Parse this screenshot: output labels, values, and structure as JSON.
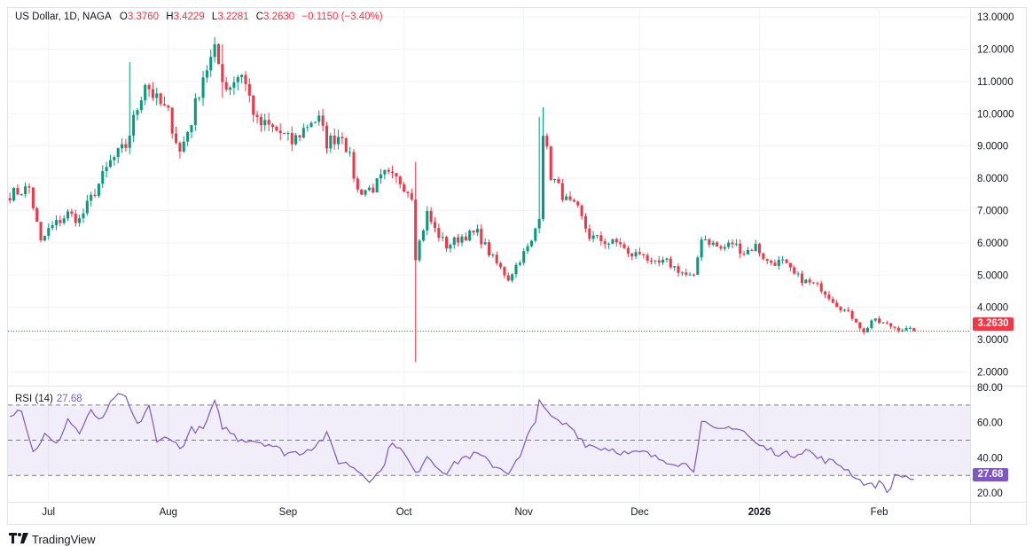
{
  "legend": {
    "symbol": "US Dollar, 1D, NAGA",
    "open_label": "O",
    "open": "3.3760",
    "high_label": "H",
    "high": "3.4229",
    "low_label": "L",
    "low": "3.2281",
    "close_label": "C",
    "close": "3.2630",
    "change": "−0.1150 (−3.40%)"
  },
  "rsi_legend": {
    "label": "RSI (14)",
    "value": "27.68"
  },
  "price_tag": "3.2630",
  "rsi_tag": "27.68",
  "branding": {
    "name": "TradingView"
  },
  "colors": {
    "up": "#089981",
    "down": "#f23645",
    "rsi": "#7e57c2",
    "grid": "#f0f3fa"
  },
  "chart_data": {
    "type": "candlestick",
    "title": "US Dollar, 1D, NAGA",
    "price_axis": {
      "ticks": [
        "13.0000",
        "12.0000",
        "11.0000",
        "10.0000",
        "9.0000",
        "8.0000",
        "7.0000",
        "6.0000",
        "5.0000",
        "4.0000",
        "3.0000",
        "2.0000"
      ],
      "range": [
        1.6,
        13.25
      ]
    },
    "rsi_axis": {
      "ticks": [
        "80.00",
        "60.00",
        "40.00",
        "20.00"
      ],
      "range": [
        15,
        80
      ],
      "bands": [
        30,
        50,
        70
      ]
    },
    "time_axis": [
      {
        "label": "Jul",
        "bar": 10,
        "bold": false
      },
      {
        "label": "Aug",
        "bar": 41,
        "bold": false
      },
      {
        "label": "Sep",
        "bar": 72,
        "bold": false
      },
      {
        "label": "Oct",
        "bar": 102,
        "bold": false
      },
      {
        "label": "Nov",
        "bar": 133,
        "bold": false
      },
      {
        "label": "Dec",
        "bar": 163,
        "bold": false
      },
      {
        "label": "2026",
        "bar": 194,
        "bold": true
      },
      {
        "label": "Feb",
        "bar": 225,
        "bold": false
      }
    ],
    "bar_count": 235,
    "current_price": 3.263,
    "current_rsi": 27.68,
    "anchors": [
      [
        0,
        7.5
      ],
      [
        5,
        7.7
      ],
      [
        8,
        6.0
      ],
      [
        10,
        6.4
      ],
      [
        15,
        6.9
      ],
      [
        18,
        6.7
      ],
      [
        22,
        7.6
      ],
      [
        26,
        8.5
      ],
      [
        30,
        9.0
      ],
      [
        35,
        11.0
      ],
      [
        38,
        10.4
      ],
      [
        41,
        10.0
      ],
      [
        44,
        8.8
      ],
      [
        47,
        9.8
      ],
      [
        50,
        11.2
      ],
      [
        53,
        11.9
      ],
      [
        56,
        10.8
      ],
      [
        60,
        11.3
      ],
      [
        62,
        10.5
      ],
      [
        64,
        9.7
      ],
      [
        67,
        9.6
      ],
      [
        70,
        9.4
      ],
      [
        73,
        9.1
      ],
      [
        78,
        9.8
      ],
      [
        80,
        9.8
      ],
      [
        82,
        9.1
      ],
      [
        86,
        9.4
      ],
      [
        88,
        8.6
      ],
      [
        90,
        7.6
      ],
      [
        94,
        7.7
      ],
      [
        97,
        8.1
      ],
      [
        101,
        7.9
      ],
      [
        104,
        7.5
      ],
      [
        105,
        5.6
      ],
      [
        108,
        6.9
      ],
      [
        110,
        6.4
      ],
      [
        113,
        5.9
      ],
      [
        117,
        6.2
      ],
      [
        121,
        6.3
      ],
      [
        125,
        5.5
      ],
      [
        129,
        4.9
      ],
      [
        132,
        5.5
      ],
      [
        135,
        6.0
      ],
      [
        137,
        6.9
      ],
      [
        138,
        9.5
      ],
      [
        140,
        8.1
      ],
      [
        144,
        7.3
      ],
      [
        147,
        7.0
      ],
      [
        150,
        6.2
      ],
      [
        155,
        6.0
      ],
      [
        158,
        6.0
      ],
      [
        160,
        5.6
      ],
      [
        164,
        5.7
      ],
      [
        166,
        5.3
      ],
      [
        170,
        5.4
      ],
      [
        175,
        5.0
      ],
      [
        177,
        4.9
      ],
      [
        179,
        6.2
      ],
      [
        184,
        5.8
      ],
      [
        187,
        6.0
      ],
      [
        190,
        5.7
      ],
      [
        193,
        5.9
      ],
      [
        196,
        5.4
      ],
      [
        200,
        5.4
      ],
      [
        203,
        5.0
      ],
      [
        206,
        4.8
      ],
      [
        210,
        4.6
      ],
      [
        214,
        4.1
      ],
      [
        217,
        3.8
      ],
      [
        219,
        3.6
      ],
      [
        221,
        3.2
      ],
      [
        223,
        3.6
      ],
      [
        226,
        3.5
      ],
      [
        229,
        3.38
      ],
      [
        234,
        3.26
      ]
    ],
    "spikes": [
      {
        "bar": 105,
        "high": 8.5,
        "low": 2.3
      },
      {
        "bar": 137,
        "high": 9.9,
        "low": 6.3
      },
      {
        "bar": 138,
        "high": 10.2,
        "low": 8.0
      },
      {
        "bar": 55,
        "high": 12.15,
        "low": 10.5
      },
      {
        "bar": 31,
        "high": 11.6,
        "low": 9.8
      }
    ],
    "rsi_anchors": [
      [
        0,
        65
      ],
      [
        3,
        68
      ],
      [
        6,
        43
      ],
      [
        9,
        53
      ],
      [
        12,
        47
      ],
      [
        15,
        62
      ],
      [
        18,
        54
      ],
      [
        21,
        66
      ],
      [
        24,
        61
      ],
      [
        27,
        75
      ],
      [
        30,
        74
      ],
      [
        33,
        58
      ],
      [
        36,
        70
      ],
      [
        38,
        48
      ],
      [
        41,
        53
      ],
      [
        44,
        45
      ],
      [
        47,
        56
      ],
      [
        50,
        56
      ],
      [
        53,
        71
      ],
      [
        55,
        58
      ],
      [
        59,
        51
      ],
      [
        63,
        50
      ],
      [
        67,
        48
      ],
      [
        71,
        43
      ],
      [
        75,
        43
      ],
      [
        79,
        47
      ],
      [
        82,
        53
      ],
      [
        85,
        38
      ],
      [
        88,
        36
      ],
      [
        90,
        33
      ],
      [
        93,
        28
      ],
      [
        96,
        32
      ],
      [
        99,
        50
      ],
      [
        102,
        42
      ],
      [
        104,
        35
      ],
      [
        105,
        30
      ],
      [
        108,
        42
      ],
      [
        110,
        36
      ],
      [
        113,
        32
      ],
      [
        117,
        40
      ],
      [
        121,
        42
      ],
      [
        125,
        36
      ],
      [
        129,
        32
      ],
      [
        132,
        40
      ],
      [
        134,
        52
      ],
      [
        136,
        60
      ],
      [
        137,
        75
      ],
      [
        139,
        65
      ],
      [
        142,
        60
      ],
      [
        145,
        58
      ],
      [
        149,
        48
      ],
      [
        152,
        46
      ],
      [
        156,
        45
      ],
      [
        160,
        42
      ],
      [
        164,
        43
      ],
      [
        167,
        40
      ],
      [
        171,
        38
      ],
      [
        175,
        36
      ],
      [
        177,
        34
      ],
      [
        179,
        60
      ],
      [
        183,
        55
      ],
      [
        187,
        58
      ],
      [
        190,
        55
      ],
      [
        193,
        48
      ],
      [
        196,
        45
      ],
      [
        200,
        42
      ],
      [
        203,
        42
      ],
      [
        206,
        45
      ],
      [
        209,
        40
      ],
      [
        212,
        38
      ],
      [
        215,
        36
      ],
      [
        218,
        31
      ],
      [
        220,
        27
      ],
      [
        223,
        24
      ],
      [
        226,
        26
      ],
      [
        227,
        20
      ],
      [
        229,
        29
      ],
      [
        231,
        30
      ],
      [
        234,
        27.68
      ]
    ]
  }
}
